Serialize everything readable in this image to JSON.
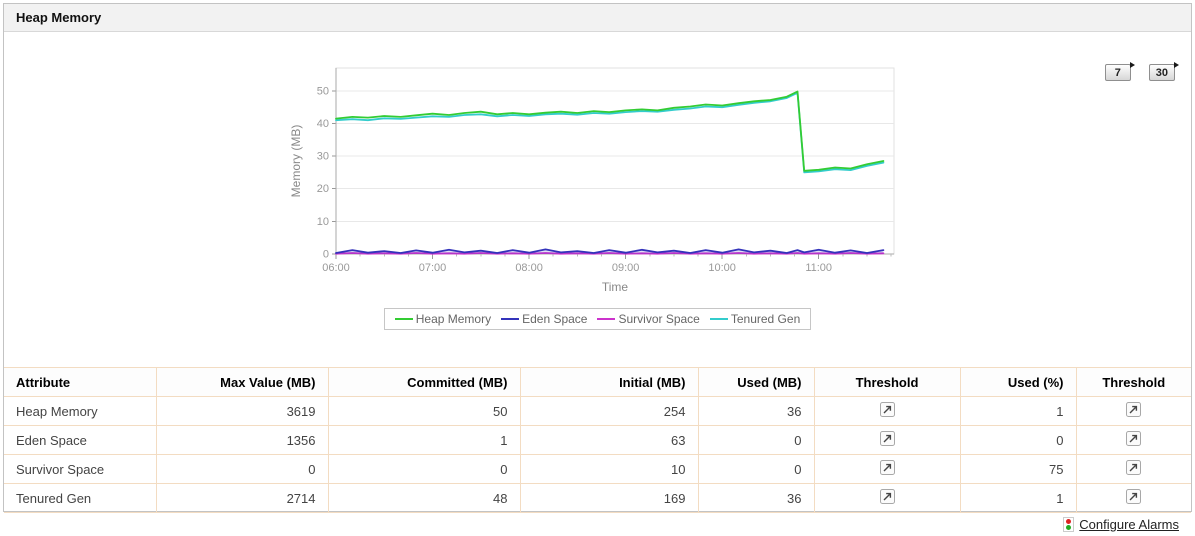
{
  "panel": {
    "title": "Heap Memory"
  },
  "range_buttons": [
    {
      "label": "7"
    },
    {
      "label": "30"
    }
  ],
  "chart_data": {
    "type": "line",
    "xlabel": "Time",
    "ylabel": "Memory (MB)",
    "xlim": [
      6,
      11.78
    ],
    "ylim": [
      0,
      57
    ],
    "yticks": [
      0,
      10,
      20,
      30,
      40,
      50
    ],
    "xticks": [
      {
        "value": 6,
        "label": "06:00"
      },
      {
        "value": 7,
        "label": "07:00"
      },
      {
        "value": 8,
        "label": "08:00"
      },
      {
        "value": 9,
        "label": "09:00"
      },
      {
        "value": 10,
        "label": "10:00"
      },
      {
        "value": 11,
        "label": "11:00"
      }
    ],
    "grid": true,
    "legend_position": "bottom",
    "x": [
      6,
      6.17,
      6.33,
      6.5,
      6.67,
      6.83,
      7,
      7.17,
      7.33,
      7.5,
      7.67,
      7.83,
      8,
      8.17,
      8.33,
      8.5,
      8.67,
      8.83,
      9,
      9.17,
      9.33,
      9.5,
      9.67,
      9.83,
      10,
      10.17,
      10.33,
      10.5,
      10.67,
      10.78,
      10.85,
      11,
      11.17,
      11.33,
      11.5,
      11.67
    ],
    "series": [
      {
        "name": "Heap Memory",
        "color": "#33cc33",
        "fill": false,
        "values": [
          41.5,
          42,
          41.8,
          42.3,
          42,
          42.5,
          43,
          42.6,
          43.2,
          43.6,
          42.8,
          43.2,
          42.8,
          43.3,
          43.6,
          43.2,
          43.8,
          43.5,
          44,
          44.3,
          44,
          44.8,
          45.2,
          45.8,
          45.5,
          46.2,
          46.8,
          47.2,
          48.2,
          49.8,
          25.5,
          25.8,
          26.5,
          26.2,
          27.5,
          28.5
        ]
      },
      {
        "name": "Eden Space",
        "color": "#3333bb",
        "fill": true,
        "values": [
          0.3,
          1.2,
          0.4,
          0.9,
          0.3,
          1.1,
          0.4,
          1.3,
          0.5,
          1,
          0.3,
          1.2,
          0.4,
          1.4,
          0.5,
          0.9,
          0.3,
          1.2,
          0.4,
          1.3,
          0.5,
          1,
          0.3,
          1.2,
          0.4,
          1.4,
          0.5,
          1,
          0.3,
          1.2,
          0.5,
          1.3,
          0.4,
          1.1,
          0.3,
          1.2
        ]
      },
      {
        "name": "Survivor Space",
        "color": "#cc33cc",
        "fill": true,
        "values": [
          0.1,
          0.3,
          0.1,
          0.2,
          0.1,
          0.3,
          0.1,
          0.2,
          0.1,
          0.3,
          0.1,
          0.2,
          0.1,
          0.3,
          0.1,
          0.2,
          0.1,
          0.3,
          0.1,
          0.2,
          0.1,
          0.3,
          0.1,
          0.2,
          0.1,
          0.3,
          0.1,
          0.2,
          0.1,
          0.3,
          0.1,
          0.2,
          0.1,
          0.3,
          0.1,
          0.2
        ]
      },
      {
        "name": "Tenured Gen",
        "color": "#33cccc",
        "fill": false,
        "values": [
          41,
          41.3,
          41,
          41.6,
          41.4,
          41.8,
          42.2,
          42,
          42.6,
          42.8,
          42.2,
          42.6,
          42.3,
          42.8,
          43,
          42.7,
          43.2,
          43,
          43.5,
          43.8,
          43.6,
          44.2,
          44.6,
          45.2,
          45,
          45.7,
          46.3,
          46.8,
          47.8,
          49.4,
          25,
          25.3,
          26,
          25.7,
          27,
          28
        ]
      }
    ]
  },
  "table": {
    "columns": [
      {
        "label": "Attribute",
        "type": "text",
        "key": "attribute"
      },
      {
        "label": "Max Value (MB)",
        "type": "num",
        "key": "max_value"
      },
      {
        "label": "Committed (MB)",
        "type": "num",
        "key": "committed"
      },
      {
        "label": "Initial (MB)",
        "type": "num",
        "key": "initial"
      },
      {
        "label": "Used (MB)",
        "type": "num",
        "key": "used_mb"
      },
      {
        "label": "Threshold",
        "type": "icon"
      },
      {
        "label": "Used (%)",
        "type": "num",
        "key": "used_pct"
      },
      {
        "label": "Threshold",
        "type": "icon"
      }
    ],
    "rows": [
      {
        "attribute": "Heap Memory",
        "max_value": "3619",
        "committed": "50",
        "initial": "254",
        "used_mb": "36",
        "used_pct": "1"
      },
      {
        "attribute": "Eden Space",
        "max_value": "1356",
        "committed": "1",
        "initial": "63",
        "used_mb": "0",
        "used_pct": "0"
      },
      {
        "attribute": "Survivor Space",
        "max_value": "0",
        "committed": "0",
        "initial": "10",
        "used_mb": "0",
        "used_pct": "75"
      },
      {
        "attribute": "Tenured Gen",
        "max_value": "2714",
        "committed": "48",
        "initial": "169",
        "used_mb": "36",
        "used_pct": "1"
      }
    ]
  },
  "footer": {
    "configure_alarms_label": "Configure Alarms"
  },
  "colors": {
    "heap": "#33cc33",
    "eden": "#3333bb",
    "survivor": "#cc33cc",
    "tenured": "#33cccc",
    "table_border": "#f3dcc2",
    "header_bg": "#f2f2f2"
  }
}
